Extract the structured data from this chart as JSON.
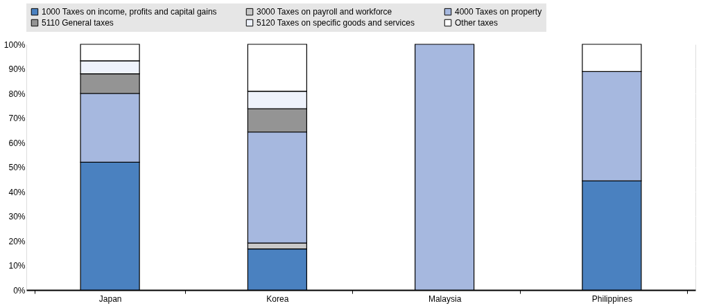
{
  "chart_data": {
    "type": "bar",
    "stacked": true,
    "categories": [
      "Japan",
      "Korea",
      "Malaysia",
      "Philippines"
    ],
    "series": [
      {
        "name": "1000 Taxes on income, profits and capital gains",
        "color": "#4a81c0",
        "values": [
          52,
          16.7,
          null,
          44.4
        ]
      },
      {
        "name": "3000 Taxes on payroll and workforce",
        "color": "#c8c8c8",
        "values": [
          null,
          2.4,
          null,
          null
        ]
      },
      {
        "name": "4000 Taxes on property",
        "color": "#a6b8df",
        "values": [
          28,
          45.2,
          100,
          44.5
        ]
      },
      {
        "name": "5110 General taxes",
        "color": "#949494",
        "values": [
          8,
          9.5,
          null,
          null
        ]
      },
      {
        "name": "5120 Taxes on specific goods and services",
        "color": "#eef2fb",
        "values": [
          5.3,
          7.1,
          null,
          null
        ]
      },
      {
        "name": "Other taxes",
        "color": "#ffffff",
        "values": [
          6.7,
          19.1,
          null,
          11.1
        ]
      }
    ],
    "ylim": [
      0,
      100
    ],
    "yticks": [
      {
        "value": 0,
        "label": "0%"
      },
      {
        "value": 10,
        "label": "10%"
      },
      {
        "value": 20,
        "label": "20%"
      },
      {
        "value": 30,
        "label": "30%"
      },
      {
        "value": 40,
        "label": "40%"
      },
      {
        "value": 50,
        "label": "50%"
      },
      {
        "value": 60,
        "label": "60%"
      },
      {
        "value": 70,
        "label": "70%"
      },
      {
        "value": 80,
        "label": "80%"
      },
      {
        "value": 90,
        "label": "90%"
      },
      {
        "value": 100,
        "label": "100%"
      }
    ],
    "grid": true,
    "legend": "top"
  }
}
